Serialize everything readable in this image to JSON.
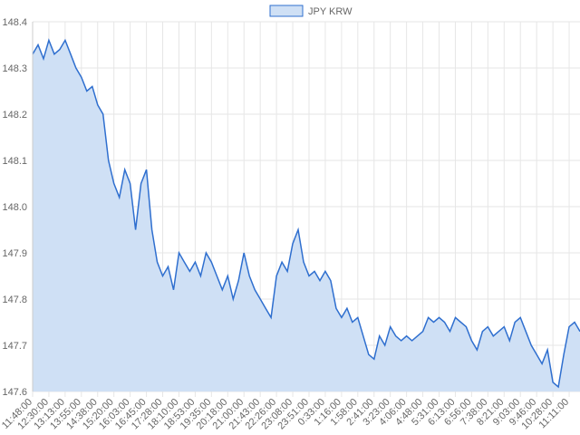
{
  "chart_data": {
    "type": "area",
    "series": [
      {
        "name": "JPY KRW",
        "color": "#2f6fcf",
        "fill": "#cfe0f5",
        "values": [
          148.33,
          148.35,
          148.32,
          148.36,
          148.33,
          148.34,
          148.36,
          148.33,
          148.3,
          148.28,
          148.25,
          148.26,
          148.22,
          148.2,
          148.1,
          148.05,
          148.02,
          148.08,
          148.05,
          147.95,
          148.05,
          148.08,
          147.95,
          147.88,
          147.85,
          147.87,
          147.82,
          147.9,
          147.88,
          147.86,
          147.88,
          147.85,
          147.9,
          147.88,
          147.85,
          147.82,
          147.85,
          147.8,
          147.84,
          147.9,
          147.85,
          147.82,
          147.8,
          147.78,
          147.76,
          147.85,
          147.88,
          147.86,
          147.92,
          147.95,
          147.88,
          147.85,
          147.86,
          147.84,
          147.86,
          147.84,
          147.78,
          147.76,
          147.78,
          147.75,
          147.76,
          147.72,
          147.68,
          147.67,
          147.72,
          147.7,
          147.74,
          147.72,
          147.71,
          147.72,
          147.71,
          147.72,
          147.73,
          147.76,
          147.75,
          147.76,
          147.75,
          147.73,
          147.76,
          147.75,
          147.74,
          147.71,
          147.69,
          147.73,
          147.74,
          147.72,
          147.73,
          147.74,
          147.71,
          147.75,
          147.76,
          147.73,
          147.7,
          147.68,
          147.66,
          147.69,
          147.62,
          147.61,
          147.68,
          147.74,
          147.75,
          147.73
        ]
      }
    ],
    "categories": [
      "11:48:00",
      null,
      null,
      "12:30:00",
      null,
      null,
      "13:13:00",
      null,
      null,
      "13:55:00",
      null,
      null,
      "14:38:00",
      null,
      null,
      "15:20:00",
      null,
      null,
      "16:03:00",
      null,
      null,
      "16:45:00",
      null,
      null,
      "17:28:00",
      null,
      null,
      "18:10:00",
      null,
      null,
      "18:53:00",
      null,
      null,
      "19:35:00",
      null,
      null,
      "20:18:00",
      null,
      null,
      "21:00:00",
      null,
      null,
      "21:43:00",
      null,
      null,
      "22:26:00",
      null,
      null,
      "23:08:00",
      null,
      null,
      "23:51:00",
      null,
      null,
      "0:33:00",
      null,
      null,
      "1:16:00",
      null,
      null,
      "1:58:00",
      null,
      null,
      "2:41:00",
      null,
      null,
      "3:23:00",
      null,
      null,
      "4:06:00",
      null,
      null,
      "4:48:00",
      null,
      null,
      "5:31:00",
      null,
      null,
      "6:13:00",
      null,
      null,
      "6:56:00",
      null,
      null,
      "7:38:00",
      null,
      null,
      "8:21:00",
      null,
      null,
      "9:03:00",
      null,
      null,
      "9:46:00",
      null,
      null,
      "10:28:00",
      null,
      null,
      "11:11:00",
      null,
      null
    ],
    "ylim": [
      147.6,
      148.4
    ],
    "yticks": [
      147.6,
      147.7,
      147.8,
      147.9,
      {
        "value": 148,
        "label": "148.0"
      },
      148.1,
      148.2,
      148.3,
      148.4
    ],
    "grid": true,
    "legend": "top"
  }
}
